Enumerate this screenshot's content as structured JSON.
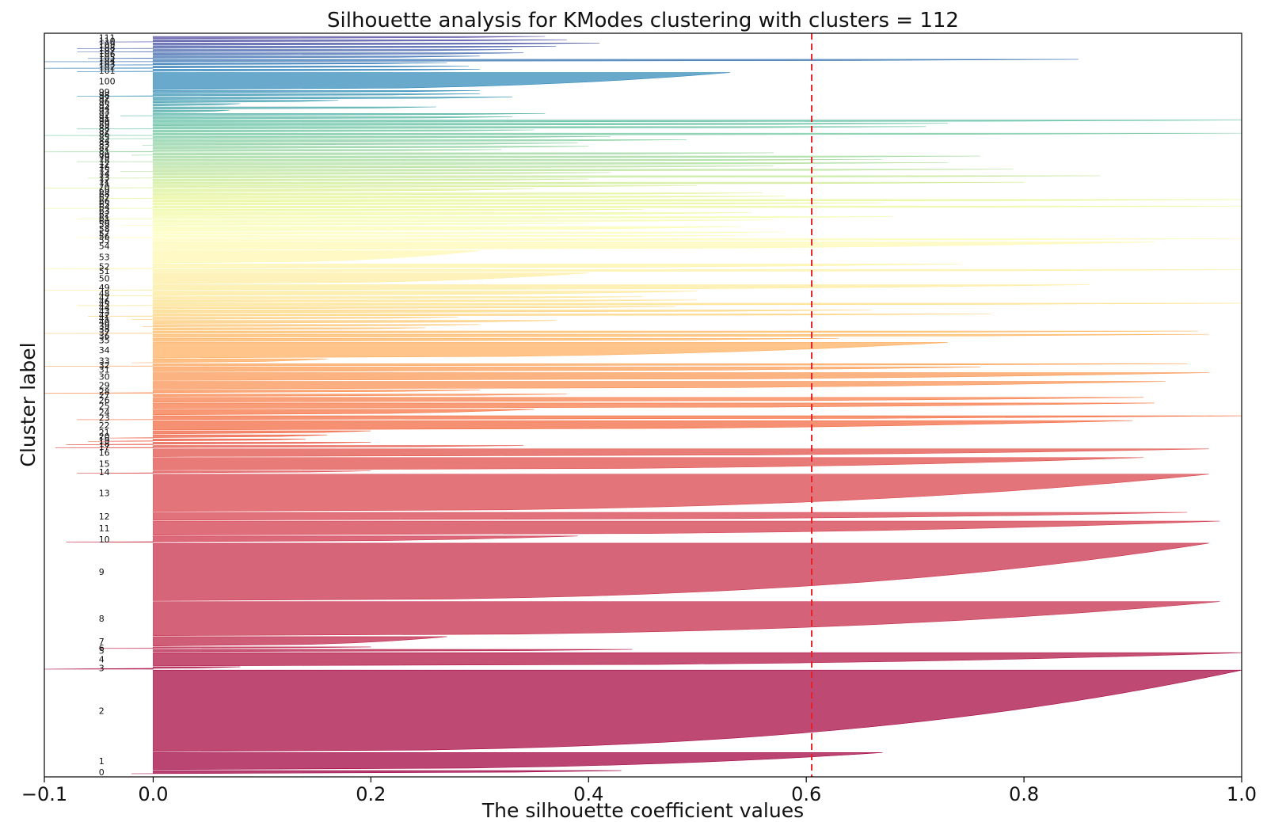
{
  "chart_data": {
    "type": "silhouette",
    "title": "Silhouette analysis for KModes clustering with clusters = 112",
    "xlabel": "The silhouette coefficient values",
    "ylabel": "Cluster label",
    "xlim": [
      -0.1,
      1.0
    ],
    "xticks": [
      -0.1,
      0.0,
      0.2,
      0.4,
      0.6,
      0.8,
      1.0
    ],
    "xtick_labels": [
      "−0.1",
      "0.0",
      "0.2",
      "0.4",
      "0.6",
      "0.8",
      "1.0"
    ],
    "average_silhouette": 0.605,
    "average_line_color": "#e8202a",
    "colormap": "Spectral",
    "clusters": [
      {
        "label": "0",
        "size": 4,
        "max": 0.43,
        "min": -0.02
      },
      {
        "label": "1",
        "size": 22,
        "max": 0.67,
        "min": 0.0
      },
      {
        "label": "2",
        "size": 105,
        "max": 1.0,
        "min": 0.0
      },
      {
        "label": "3",
        "size": 3,
        "max": 0.08,
        "min": -0.1
      },
      {
        "label": "4",
        "size": 17,
        "max": 1.0,
        "min": 0.0
      },
      {
        "label": "5",
        "size": 3,
        "max": 0.44,
        "min": 0.0
      },
      {
        "label": "6",
        "size": 2,
        "max": 0.2,
        "min": -0.05
      },
      {
        "label": "7",
        "size": 12,
        "max": 0.27,
        "min": 0.0
      },
      {
        "label": "8",
        "size": 44,
        "max": 0.98,
        "min": 0.0
      },
      {
        "label": "9",
        "size": 74,
        "max": 0.97,
        "min": 0.0
      },
      {
        "label": "10",
        "size": 8,
        "max": 0.39,
        "min": -0.08
      },
      {
        "label": "11",
        "size": 18,
        "max": 0.98,
        "min": 0.0
      },
      {
        "label": "12",
        "size": 10,
        "max": 0.95,
        "min": 0.0
      },
      {
        "label": "13",
        "size": 48,
        "max": 0.97,
        "min": 0.0
      },
      {
        "label": "14",
        "size": 3,
        "max": 0.2,
        "min": -0.07
      },
      {
        "label": "15",
        "size": 16,
        "max": 0.91,
        "min": 0.0
      },
      {
        "label": "16",
        "size": 10,
        "max": 0.97,
        "min": 0.0
      },
      {
        "label": "17",
        "size": 3,
        "max": 0.34,
        "min": -0.09
      },
      {
        "label": "18",
        "size": 3,
        "max": 0.2,
        "min": -0.08
      },
      {
        "label": "19",
        "size": 3,
        "max": 0.14,
        "min": -0.06
      },
      {
        "label": "20",
        "size": 4,
        "max": 0.16,
        "min": -0.04
      },
      {
        "label": "21",
        "size": 4,
        "max": 0.2,
        "min": 0.0
      },
      {
        "label": "22",
        "size": 12,
        "max": 0.9,
        "min": 0.0
      },
      {
        "label": "23",
        "size": 5,
        "max": 1.0,
        "min": -0.07
      },
      {
        "label": "24",
        "size": 7,
        "max": 0.35,
        "min": 0.0
      },
      {
        "label": "25",
        "size": 7,
        "max": 0.92,
        "min": 0.0
      },
      {
        "label": "26",
        "size": 6,
        "max": 0.91,
        "min": 0.0
      },
      {
        "label": "27",
        "size": 3,
        "max": 0.38,
        "min": 0.0
      },
      {
        "label": "28",
        "size": 4,
        "max": 0.3,
        "min": -0.1
      },
      {
        "label": "29",
        "size": 10,
        "max": 0.93,
        "min": 0.0
      },
      {
        "label": "30",
        "size": 10,
        "max": 0.97,
        "min": 0.0
      },
      {
        "label": "31",
        "size": 6,
        "max": 0.76,
        "min": 0.0
      },
      {
        "label": "32",
        "size": 3,
        "max": 0.95,
        "min": -0.1
      },
      {
        "label": "33",
        "size": 5,
        "max": 0.16,
        "min": -0.02
      },
      {
        "label": "34",
        "size": 20,
        "max": 0.73,
        "min": 0.0
      },
      {
        "label": "35",
        "size": 4,
        "max": 0.63,
        "min": 0.0
      },
      {
        "label": "36",
        "size": 4,
        "max": 0.97,
        "min": 0.0
      },
      {
        "label": "37",
        "size": 3,
        "max": 0.96,
        "min": -0.1
      },
      {
        "label": "38",
        "size": 3,
        "max": 0.25,
        "min": 0.0
      },
      {
        "label": "39",
        "size": 3,
        "max": 0.3,
        "min": -0.01
      },
      {
        "label": "40",
        "size": 4,
        "max": 0.37,
        "min": 0.0
      },
      {
        "label": "41",
        "size": 3,
        "max": 0.28,
        "min": -0.02
      },
      {
        "label": "42",
        "size": 3,
        "max": 0.77,
        "min": -0.06
      },
      {
        "label": "43",
        "size": 4,
        "max": 0.66,
        "min": 0.0
      },
      {
        "label": "44",
        "size": 3,
        "max": 0.48,
        "min": 0.0
      },
      {
        "label": "45",
        "size": 3,
        "max": 1.0,
        "min": -0.07
      },
      {
        "label": "46",
        "size": 3,
        "max": 0.5,
        "min": 0.0
      },
      {
        "label": "47",
        "size": 3,
        "max": 0.45,
        "min": 0.0
      },
      {
        "label": "48",
        "size": 6,
        "max": 0.5,
        "min": -0.05
      },
      {
        "label": "49",
        "size": 7,
        "max": 0.86,
        "min": -0.1
      },
      {
        "label": "50",
        "size": 14,
        "max": 0.4,
        "min": 0.0
      },
      {
        "label": "51",
        "size": 3,
        "max": 1.0,
        "min": 0.0
      },
      {
        "label": "52",
        "size": 6,
        "max": 0.74,
        "min": -0.1
      },
      {
        "label": "53",
        "size": 16,
        "max": 0.3,
        "min": 0.0
      },
      {
        "label": "54",
        "size": 10,
        "max": 0.92,
        "min": 0.0
      },
      {
        "label": "55",
        "size": 3,
        "max": 1.0,
        "min": 0.0
      },
      {
        "label": "56",
        "size": 3,
        "max": 0.55,
        "min": -0.07
      },
      {
        "label": "57",
        "size": 3,
        "max": 0.58,
        "min": 0.0
      },
      {
        "label": "58",
        "size": 6,
        "max": 0.54,
        "min": 0.0
      },
      {
        "label": "59",
        "size": 3,
        "max": 0.4,
        "min": -0.03
      },
      {
        "label": "60",
        "size": 3,
        "max": 0.57,
        "min": 0.0
      },
      {
        "label": "61",
        "size": 3,
        "max": 0.68,
        "min": -0.07
      },
      {
        "label": "62",
        "size": 4,
        "max": 0.55,
        "min": 0.0
      },
      {
        "label": "63",
        "size": 3,
        "max": 0.45,
        "min": 0.0
      },
      {
        "label": "64",
        "size": 3,
        "max": 1.0,
        "min": -0.1
      },
      {
        "label": "65",
        "size": 3,
        "max": 0.67,
        "min": 0.0
      },
      {
        "label": "66",
        "size": 3,
        "max": 1.0,
        "min": 0.0
      },
      {
        "label": "67",
        "size": 3,
        "max": 0.58,
        "min": -0.05
      },
      {
        "label": "68",
        "size": 3,
        "max": 0.56,
        "min": 0.0
      },
      {
        "label": "69",
        "size": 4,
        "max": 0.35,
        "min": 0.0
      },
      {
        "label": "70",
        "size": 3,
        "max": 0.5,
        "min": -0.1
      },
      {
        "label": "71",
        "size": 3,
        "max": 0.8,
        "min": 0.0
      },
      {
        "label": "72",
        "size": 3,
        "max": 0.4,
        "min": 0.0
      },
      {
        "label": "73",
        "size": 3,
        "max": 0.87,
        "min": -0.06
      },
      {
        "label": "74",
        "size": 3,
        "max": 0.42,
        "min": 0.0
      },
      {
        "label": "75",
        "size": 3,
        "max": 0.79,
        "min": -0.03
      },
      {
        "label": "76",
        "size": 3,
        "max": 0.57,
        "min": 0.0
      },
      {
        "label": "77",
        "size": 3,
        "max": 0.73,
        "min": 0.0
      },
      {
        "label": "78",
        "size": 3,
        "max": 0.67,
        "min": -0.07
      },
      {
        "label": "79",
        "size": 3,
        "max": 0.76,
        "min": 0.0
      },
      {
        "label": "80",
        "size": 3,
        "max": 0.57,
        "min": -0.02
      },
      {
        "label": "81",
        "size": 3,
        "max": 0.32,
        "min": -0.1
      },
      {
        "label": "82",
        "size": 3,
        "max": 0.4,
        "min": 0.0
      },
      {
        "label": "83",
        "size": 3,
        "max": 0.39,
        "min": -0.01
      },
      {
        "label": "84",
        "size": 3,
        "max": 0.49,
        "min": 0.0
      },
      {
        "label": "85",
        "size": 3,
        "max": 0.42,
        "min": -0.05
      },
      {
        "label": "86",
        "size": 3,
        "max": 1.0,
        "min": -0.1
      },
      {
        "label": "87",
        "size": 3,
        "max": 0.35,
        "min": 0.0
      },
      {
        "label": "88",
        "size": 3,
        "max": 0.71,
        "min": -0.07
      },
      {
        "label": "89",
        "size": 3,
        "max": 0.73,
        "min": 0.0
      },
      {
        "label": "90",
        "size": 3,
        "max": 1.0,
        "min": 0.0
      },
      {
        "label": "91",
        "size": 3,
        "max": 0.33,
        "min": 0.0
      },
      {
        "label": "92",
        "size": 3,
        "max": 0.36,
        "min": -0.03
      },
      {
        "label": "93",
        "size": 3,
        "max": 0.07,
        "min": 0.0
      },
      {
        "label": "94",
        "size": 3,
        "max": 0.26,
        "min": 0.0
      },
      {
        "label": "95",
        "size": 3,
        "max": 0.08,
        "min": 0.0
      },
      {
        "label": "96",
        "size": 3,
        "max": 0.17,
        "min": 0.0
      },
      {
        "label": "97",
        "size": 3,
        "max": 0.33,
        "min": 0.0
      },
      {
        "label": "98",
        "size": 3,
        "max": 0.3,
        "min": -0.07
      },
      {
        "label": "99",
        "size": 3,
        "max": 0.3,
        "min": 0.0
      },
      {
        "label": "100",
        "size": 22,
        "max": 0.53,
        "min": 0.0
      },
      {
        "label": "101",
        "size": 3,
        "max": 0.3,
        "min": -0.07
      },
      {
        "label": "102",
        "size": 3,
        "max": 0.29,
        "min": -0.1
      },
      {
        "label": "103",
        "size": 3,
        "max": 0.27,
        "min": -0.05
      },
      {
        "label": "104",
        "size": 3,
        "max": 0.85,
        "min": -0.1
      },
      {
        "label": "105",
        "size": 3,
        "max": 0.3,
        "min": -0.06
      },
      {
        "label": "106",
        "size": 3,
        "max": 0.34,
        "min": 0.0
      },
      {
        "label": "107",
        "size": 3,
        "max": 0.33,
        "min": -0.07
      },
      {
        "label": "108",
        "size": 3,
        "max": 0.37,
        "min": -0.07
      },
      {
        "label": "109",
        "size": 3,
        "max": 0.41,
        "min": 0.0
      },
      {
        "label": "110",
        "size": 3,
        "max": 0.38,
        "min": -0.05
      },
      {
        "label": "111",
        "size": 3,
        "max": 0.36,
        "min": 0.0
      }
    ]
  }
}
